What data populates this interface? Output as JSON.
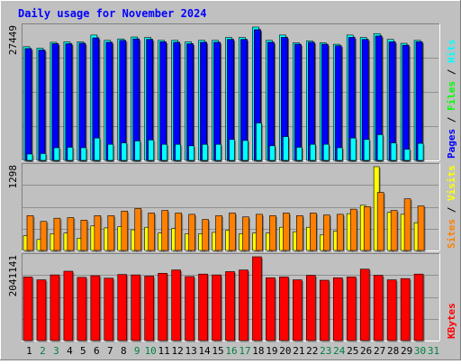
{
  "title": "Daily usage for November 2024",
  "colors": {
    "background": "#c0c0c0",
    "border_light": "#ffffff",
    "border_dark": "#808080",
    "title": "#0000ff",
    "pages": "#0000ff",
    "hits": "#00ffff",
    "files": "#00ff00",
    "visits": "#ffff00",
    "sites": "#ff8000",
    "kbytes": "#ff0000",
    "weekday_label": "#000000",
    "weekend_label": "#008040",
    "gridline": "#808080"
  },
  "chart_data": [
    {
      "type": "bar",
      "panel": "hits-files-pages",
      "ymax_label": "27449",
      "ylim": [
        0,
        27449
      ],
      "grid": true,
      "legend": [
        "Pages",
        "/",
        "Files",
        "/",
        "Hits"
      ],
      "categories": [
        "1",
        "2",
        "3",
        "4",
        "5",
        "6",
        "7",
        "8",
        "9",
        "10",
        "11",
        "12",
        "13",
        "14",
        "15",
        "16",
        "17",
        "18",
        "19",
        "20",
        "21",
        "22",
        "23",
        "24",
        "25",
        "26",
        "27",
        "28",
        "29",
        "30",
        "31"
      ],
      "series": [
        {
          "name": "Hits",
          "values": [
            23400,
            23100,
            24300,
            24400,
            24400,
            25800,
            24700,
            25000,
            25400,
            25300,
            24700,
            24700,
            24400,
            24700,
            24700,
            25300,
            25300,
            27449,
            24700,
            25800,
            24200,
            24600,
            24200,
            23900,
            25800,
            25300,
            26100,
            24900,
            24100,
            24700,
            null
          ]
        },
        {
          "name": "Files",
          "values": [
            23000,
            22700,
            24000,
            24000,
            24100,
            25200,
            24300,
            24700,
            25000,
            24900,
            24400,
            24300,
            24000,
            24300,
            24300,
            24900,
            24900,
            26900,
            24300,
            25300,
            23900,
            24300,
            23900,
            23600,
            25300,
            24900,
            25600,
            24400,
            23700,
            24400,
            null
          ]
        },
        {
          "name": "Pages",
          "values": [
            1300,
            1400,
            2600,
            2700,
            2600,
            4600,
            3300,
            3600,
            4000,
            4200,
            3300,
            3300,
            3000,
            3300,
            3300,
            4300,
            4100,
            7700,
            3000,
            4900,
            2700,
            3300,
            3300,
            2600,
            4600,
            4300,
            5300,
            3600,
            2300,
            3500,
            null
          ]
        }
      ]
    },
    {
      "type": "bar",
      "panel": "visits-sites",
      "ymax_label": "1298",
      "ylim": [
        0,
        1298
      ],
      "grid": true,
      "legend": [
        "Sites",
        "/",
        "Visits"
      ],
      "categories": [
        "1",
        "2",
        "3",
        "4",
        "5",
        "6",
        "7",
        "8",
        "9",
        "10",
        "11",
        "12",
        "13",
        "14",
        "15",
        "16",
        "17",
        "18",
        "19",
        "20",
        "21",
        "22",
        "23",
        "24",
        "25",
        "26",
        "27",
        "28",
        "29",
        "30",
        "31"
      ],
      "series": [
        {
          "name": "Visits",
          "values": [
            230,
            170,
            260,
            270,
            190,
            380,
            350,
            370,
            320,
            360,
            270,
            340,
            260,
            260,
            280,
            310,
            260,
            270,
            270,
            360,
            290,
            360,
            240,
            300,
            570,
            700,
            1298,
            590,
            560,
            430,
            null
          ]
        },
        {
          "name": "Sites",
          "values": [
            540,
            450,
            500,
            510,
            470,
            540,
            540,
            610,
            650,
            580,
            620,
            580,
            560,
            480,
            540,
            580,
            520,
            560,
            540,
            580,
            540,
            580,
            550,
            560,
            640,
            680,
            900,
            620,
            800,
            690,
            null
          ]
        }
      ]
    },
    {
      "type": "bar",
      "panel": "kbytes",
      "ymax_label": "2041141",
      "ylim": [
        0,
        2041141
      ],
      "grid": true,
      "legend": [
        "KBytes"
      ],
      "categories": [
        "1",
        "2",
        "3",
        "4",
        "5",
        "6",
        "7",
        "8",
        "9",
        "10",
        "11",
        "12",
        "13",
        "14",
        "15",
        "16",
        "17",
        "18",
        "19",
        "20",
        "21",
        "22",
        "23",
        "24",
        "25",
        "26",
        "27",
        "28",
        "29",
        "30",
        "31"
      ],
      "series": [
        {
          "name": "KBytes",
          "values": [
            1550000,
            1480000,
            1600000,
            1690000,
            1540000,
            1580000,
            1520000,
            1610000,
            1600000,
            1570000,
            1640000,
            1720000,
            1560000,
            1620000,
            1600000,
            1680000,
            1720000,
            2041141,
            1530000,
            1550000,
            1480000,
            1590000,
            1470000,
            1530000,
            1550000,
            1740000,
            1590000,
            1480000,
            1510000,
            1620000,
            null
          ]
        }
      ]
    }
  ],
  "weekend_days": [
    "2",
    "3",
    "9",
    "10",
    "16",
    "17",
    "23",
    "24",
    "30",
    "31"
  ]
}
